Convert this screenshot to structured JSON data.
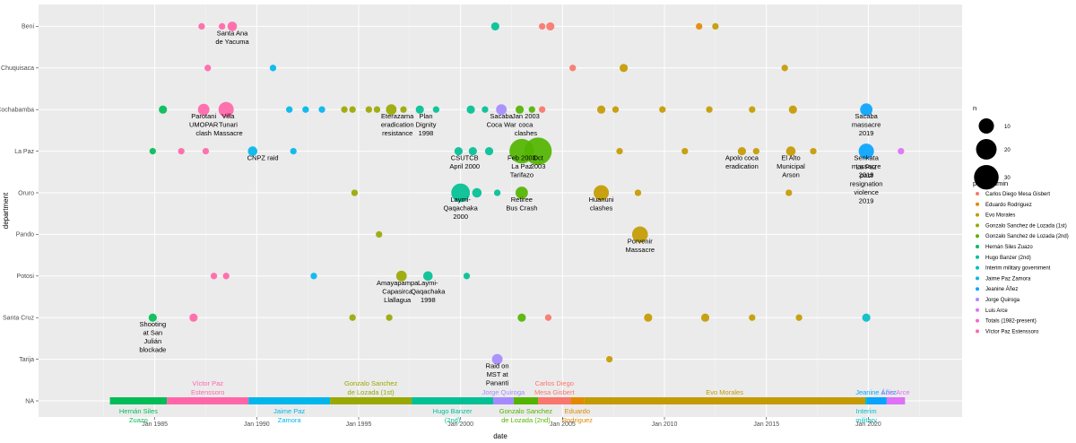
{
  "chart_data": {
    "type": "scatter",
    "title": "",
    "xlabel": "date",
    "ylabel": "department",
    "xlim": [
      1979.3,
      2024.6
    ],
    "x_ticks": [
      1985,
      1990,
      1995,
      2000,
      2005,
      2010,
      2015,
      2020
    ],
    "x_tick_labels": [
      "Jan 1985",
      "Jan 1990",
      "Jan 1995",
      "Jan 2000",
      "Jan 2005",
      "Jan 2010",
      "Jan 2015",
      "Jan 2020"
    ],
    "categories": [
      "NA",
      "Tarija",
      "Santa Cruz",
      "Potosi",
      "Pando",
      "Oruro",
      "La Paz",
      "Cochabamba",
      "Chuquisaca",
      "Beni"
    ],
    "size_legend": {
      "title": "n",
      "values": [
        10,
        20,
        30
      ]
    },
    "color_legend": {
      "title": "pres_admin",
      "entries": [
        {
          "name": "Carlos Diego Mesa Gisbert",
          "color": "#F8766D"
        },
        {
          "name": "Eduardo Rodriguez",
          "color": "#E38900"
        },
        {
          "name": "Evo Morales",
          "color": "#C49A00"
        },
        {
          "name": "Gonzalo Sanchez de Lozada (1st)",
          "color": "#99A800"
        },
        {
          "name": "Gonzalo Sanchez de Lozada (2nd)",
          "color": "#53B400"
        },
        {
          "name": "Hernán Siles Zuazo",
          "color": "#00BC56"
        },
        {
          "name": "Hugo Banzer (2nd)",
          "color": "#00C094"
        },
        {
          "name": "Interim military government",
          "color": "#00BFC4"
        },
        {
          "name": "Jaime Paz Zamora",
          "color": "#00B6EB"
        },
        {
          "name": "Jeanine Áñez",
          "color": "#06A4FF"
        },
        {
          "name": "Jorge Quiroga",
          "color": "#A58AFF"
        },
        {
          "name": "Luis Arce",
          "color": "#DF70F8"
        },
        {
          "name": "Totals (1982-present)",
          "color": "#FB61D7"
        },
        {
          "name": "Víctor Paz Estenssoro",
          "color": "#FF66A8"
        }
      ]
    },
    "presidencies": [
      {
        "name": "Hernán Siles Zuazo",
        "start": 1982.8,
        "end": 1985.6,
        "color": "#00BC56",
        "label_lines": [
          "Hernán Siles",
          "Zuazo"
        ],
        "label_side": "below"
      },
      {
        "name": "Víctor Paz Estenssoro",
        "start": 1985.6,
        "end": 1989.6,
        "color": "#FF66A8",
        "label_lines": [
          "Víctor Paz",
          "Estenssoro"
        ],
        "label_side": "above"
      },
      {
        "name": "Jaime Paz Zamora",
        "start": 1989.6,
        "end": 1993.6,
        "color": "#00B6EB",
        "label_lines": [
          "Jaime Paz",
          "Zamora"
        ],
        "label_side": "below"
      },
      {
        "name": "Gonzalo Sanchez de Lozada (1st)",
        "start": 1993.6,
        "end": 1997.6,
        "color": "#99A800",
        "label_lines": [
          "Gonzalo Sanchez",
          "de Lozada (1st)"
        ],
        "label_side": "above"
      },
      {
        "name": "Hugo Banzer (2nd)",
        "start": 1997.6,
        "end": 2001.6,
        "color": "#00C094",
        "label_lines": [
          "Hugo Banzer",
          "(2nd)"
        ],
        "label_side": "below"
      },
      {
        "name": "Jorge Quiroga",
        "start": 2001.6,
        "end": 2002.6,
        "color": "#A58AFF",
        "label_lines": [
          "Jorge Quiroga"
        ],
        "label_side": "above"
      },
      {
        "name": "Gonzalo Sanchez de Lozada (2nd)",
        "start": 2002.6,
        "end": 2003.8,
        "color": "#53B400",
        "label_lines": [
          "Gonzalo Sanchez",
          "de Lozada (2nd)"
        ],
        "label_side": "below"
      },
      {
        "name": "Carlos Diego Mesa Gisbert",
        "start": 2003.8,
        "end": 2005.4,
        "color": "#F8766D",
        "label_lines": [
          "Carlos Diego",
          "Mesa Gisbert"
        ],
        "label_side": "above"
      },
      {
        "name": "Eduardo Rodriguez",
        "start": 2005.4,
        "end": 2006.05,
        "color": "#E38900",
        "label_lines": [
          "Eduardo",
          "Rodriguez"
        ],
        "label_side": "below"
      },
      {
        "name": "Evo Morales",
        "start": 2006.05,
        "end": 2019.85,
        "color": "#C49A00",
        "label_lines": [
          "Evo Morales"
        ],
        "label_side": "above"
      },
      {
        "name": "Jeanine Áñez",
        "start": 2019.85,
        "end": 2020.9,
        "color": "#06A4FF",
        "label_lines": [
          "Jeanine Áñez"
        ],
        "label_side": "above"
      },
      {
        "name": "Interim military government",
        "start": 2019.85,
        "end": 2019.95,
        "color": "#00BFC4",
        "label_lines": [
          "Interim",
          "military"
        ],
        "label_side": "below"
      },
      {
        "name": "Luis Arce",
        "start": 2020.9,
        "end": 2021.8,
        "color": "#DF70F8",
        "label_lines": [
          "Luis Arce"
        ],
        "label_side": "above"
      }
    ],
    "points": [
      {
        "x": 1987.3,
        "y": "Beni",
        "n": 1,
        "color": "#FF66A8"
      },
      {
        "x": 1988.3,
        "y": "Beni",
        "n": 1,
        "color": "#FF66A8"
      },
      {
        "x": 1988.8,
        "y": "Beni",
        "n": 3,
        "color": "#FF66A8"
      },
      {
        "x": 2001.7,
        "y": "Beni",
        "n": 2,
        "color": "#00C094"
      },
      {
        "x": 2004.0,
        "y": "Beni",
        "n": 1,
        "color": "#F8766D"
      },
      {
        "x": 2004.4,
        "y": "Beni",
        "n": 2,
        "color": "#F8766D"
      },
      {
        "x": 2011.7,
        "y": "Beni",
        "n": 1,
        "color": "#E38900"
      },
      {
        "x": 2012.5,
        "y": "Beni",
        "n": 1,
        "color": "#C49A00"
      },
      {
        "x": 1987.6,
        "y": "Chuquisaca",
        "n": 1,
        "color": "#FF66A8"
      },
      {
        "x": 1990.8,
        "y": "Chuquisaca",
        "n": 1,
        "color": "#00B6EB"
      },
      {
        "x": 2005.5,
        "y": "Chuquisaca",
        "n": 1,
        "color": "#F8766D"
      },
      {
        "x": 2008.0,
        "y": "Chuquisaca",
        "n": 2,
        "color": "#C49A00"
      },
      {
        "x": 2015.9,
        "y": "Chuquisaca",
        "n": 1,
        "color": "#C49A00"
      },
      {
        "x": 1985.4,
        "y": "Cochabamba",
        "n": 2,
        "color": "#00BC56"
      },
      {
        "x": 1987.4,
        "y": "Cochabamba",
        "n": 5,
        "color": "#FF66A8"
      },
      {
        "x": 1988.5,
        "y": "Cochabamba",
        "n": 10,
        "color": "#FF66A8"
      },
      {
        "x": 1991.6,
        "y": "Cochabamba",
        "n": 1,
        "color": "#00B6EB"
      },
      {
        "x": 1992.4,
        "y": "Cochabamba",
        "n": 1,
        "color": "#00B6EB"
      },
      {
        "x": 1993.2,
        "y": "Cochabamba",
        "n": 1,
        "color": "#00B6EB"
      },
      {
        "x": 1994.3,
        "y": "Cochabamba",
        "n": 1,
        "color": "#99A800"
      },
      {
        "x": 1994.7,
        "y": "Cochabamba",
        "n": 1,
        "color": "#99A800"
      },
      {
        "x": 1995.5,
        "y": "Cochabamba",
        "n": 1,
        "color": "#99A800"
      },
      {
        "x": 1995.9,
        "y": "Cochabamba",
        "n": 1,
        "color": "#99A800"
      },
      {
        "x": 1996.6,
        "y": "Cochabamba",
        "n": 4,
        "color": "#99A800"
      },
      {
        "x": 1997.2,
        "y": "Cochabamba",
        "n": 1,
        "color": "#99A800"
      },
      {
        "x": 1998.0,
        "y": "Cochabamba",
        "n": 2,
        "color": "#00C094"
      },
      {
        "x": 1998.8,
        "y": "Cochabamba",
        "n": 1,
        "color": "#00C094"
      },
      {
        "x": 2000.5,
        "y": "Cochabamba",
        "n": 2,
        "color": "#00C094"
      },
      {
        "x": 2001.2,
        "y": "Cochabamba",
        "n": 1,
        "color": "#00C094"
      },
      {
        "x": 2002.0,
        "y": "Cochabamba",
        "n": 4,
        "color": "#A58AFF"
      },
      {
        "x": 2002.9,
        "y": "Cochabamba",
        "n": 2,
        "color": "#53B400"
      },
      {
        "x": 2003.5,
        "y": "Cochabamba",
        "n": 1,
        "color": "#53B400"
      },
      {
        "x": 2004.0,
        "y": "Cochabamba",
        "n": 1,
        "color": "#F8766D"
      },
      {
        "x": 2006.9,
        "y": "Cochabamba",
        "n": 2,
        "color": "#C49A00"
      },
      {
        "x": 2007.6,
        "y": "Cochabamba",
        "n": 1,
        "color": "#C49A00"
      },
      {
        "x": 2009.9,
        "y": "Cochabamba",
        "n": 1,
        "color": "#C49A00"
      },
      {
        "x": 2012.2,
        "y": "Cochabamba",
        "n": 1,
        "color": "#C49A00"
      },
      {
        "x": 2014.3,
        "y": "Cochabamba",
        "n": 1,
        "color": "#C49A00"
      },
      {
        "x": 2016.3,
        "y": "Cochabamba",
        "n": 2,
        "color": "#C49A00"
      },
      {
        "x": 2019.9,
        "y": "Cochabamba",
        "n": 6,
        "color": "#06A4FF"
      },
      {
        "x": 1984.9,
        "y": "La Paz",
        "n": 1,
        "color": "#00BC56"
      },
      {
        "x": 1986.3,
        "y": "La Paz",
        "n": 1,
        "color": "#FF66A8"
      },
      {
        "x": 1987.5,
        "y": "La Paz",
        "n": 1,
        "color": "#FF66A8"
      },
      {
        "x": 1989.8,
        "y": "La Paz",
        "n": 3,
        "color": "#00B6EB"
      },
      {
        "x": 1991.8,
        "y": "La Paz",
        "n": 1,
        "color": "#00B6EB"
      },
      {
        "x": 1999.9,
        "y": "La Paz",
        "n": 2,
        "color": "#00C094"
      },
      {
        "x": 2000.6,
        "y": "La Paz",
        "n": 2,
        "color": "#00C094"
      },
      {
        "x": 2001.4,
        "y": "La Paz",
        "n": 2,
        "color": "#00C094"
      },
      {
        "x": 2003.0,
        "y": "La Paz",
        "n": 30,
        "color": "#53B400"
      },
      {
        "x": 2003.8,
        "y": "La Paz",
        "n": 38,
        "color": "#53B400"
      },
      {
        "x": 2007.8,
        "y": "La Paz",
        "n": 1,
        "color": "#C49A00"
      },
      {
        "x": 2011.0,
        "y": "La Paz",
        "n": 1,
        "color": "#C49A00"
      },
      {
        "x": 2013.8,
        "y": "La Paz",
        "n": 2,
        "color": "#C49A00"
      },
      {
        "x": 2014.5,
        "y": "La Paz",
        "n": 1,
        "color": "#C49A00"
      },
      {
        "x": 2016.2,
        "y": "La Paz",
        "n": 3,
        "color": "#C49A00"
      },
      {
        "x": 2017.3,
        "y": "La Paz",
        "n": 1,
        "color": "#C49A00"
      },
      {
        "x": 2019.9,
        "y": "La Paz",
        "n": 10,
        "color": "#06A4FF"
      },
      {
        "x": 2021.6,
        "y": "La Paz",
        "n": 1,
        "color": "#DF70F8"
      },
      {
        "x": 1994.8,
        "y": "Oruro",
        "n": 1,
        "color": "#99A800"
      },
      {
        "x": 2000.0,
        "y": "Oruro",
        "n": 16,
        "color": "#00C094"
      },
      {
        "x": 2000.8,
        "y": "Oruro",
        "n": 3,
        "color": "#00C094"
      },
      {
        "x": 2001.8,
        "y": "Oruro",
        "n": 1,
        "color": "#00C094"
      },
      {
        "x": 2003.0,
        "y": "Oruro",
        "n": 6,
        "color": "#53B400"
      },
      {
        "x": 2006.9,
        "y": "Oruro",
        "n": 10,
        "color": "#C49A00"
      },
      {
        "x": 2008.7,
        "y": "Oruro",
        "n": 1,
        "color": "#C49A00"
      },
      {
        "x": 2016.1,
        "y": "Oruro",
        "n": 1,
        "color": "#C49A00"
      },
      {
        "x": 1996.0,
        "y": "Pando",
        "n": 1,
        "color": "#99A800"
      },
      {
        "x": 2008.8,
        "y": "Pando",
        "n": 11,
        "color": "#C49A00"
      },
      {
        "x": 1987.9,
        "y": "Potosi",
        "n": 1,
        "color": "#FF66A8"
      },
      {
        "x": 1988.5,
        "y": "Potosi",
        "n": 1,
        "color": "#FF66A8"
      },
      {
        "x": 1992.8,
        "y": "Potosi",
        "n": 1,
        "color": "#00B6EB"
      },
      {
        "x": 1997.1,
        "y": "Potosi",
        "n": 4,
        "color": "#99A800"
      },
      {
        "x": 1998.4,
        "y": "Potosi",
        "n": 3,
        "color": "#00C094"
      },
      {
        "x": 2000.3,
        "y": "Potosi",
        "n": 1,
        "color": "#00C094"
      },
      {
        "x": 1984.9,
        "y": "Santa Cruz",
        "n": 2,
        "color": "#00BC56"
      },
      {
        "x": 1986.9,
        "y": "Santa Cruz",
        "n": 2,
        "color": "#FF66A8"
      },
      {
        "x": 1994.7,
        "y": "Santa Cruz",
        "n": 1,
        "color": "#99A800"
      },
      {
        "x": 1996.5,
        "y": "Santa Cruz",
        "n": 1,
        "color": "#99A800"
      },
      {
        "x": 2003.0,
        "y": "Santa Cruz",
        "n": 2,
        "color": "#53B400"
      },
      {
        "x": 2004.3,
        "y": "Santa Cruz",
        "n": 1,
        "color": "#F8766D"
      },
      {
        "x": 2009.2,
        "y": "Santa Cruz",
        "n": 2,
        "color": "#C49A00"
      },
      {
        "x": 2012.0,
        "y": "Santa Cruz",
        "n": 2,
        "color": "#C49A00"
      },
      {
        "x": 2014.3,
        "y": "Santa Cruz",
        "n": 1,
        "color": "#C49A00"
      },
      {
        "x": 2016.6,
        "y": "Santa Cruz",
        "n": 1,
        "color": "#C49A00"
      },
      {
        "x": 2019.9,
        "y": "Santa Cruz",
        "n": 2,
        "color": "#00BFC4"
      },
      {
        "x": 2001.8,
        "y": "Tarija",
        "n": 4,
        "color": "#A58AFF"
      },
      {
        "x": 2007.3,
        "y": "Tarija",
        "n": 1,
        "color": "#C49A00"
      }
    ],
    "annotations": [
      {
        "x": 1988.8,
        "y": "Beni",
        "lines": [
          "Santa Ana",
          "de Yacuma"
        ],
        "anchor": "middle"
      },
      {
        "x": 1987.4,
        "y": "Cochabamba",
        "lines": [
          "Parotani",
          "UMOPAR",
          "clash"
        ],
        "anchor": "middle"
      },
      {
        "x": 1988.6,
        "y": "Cochabamba",
        "lines": [
          "Villa",
          "Tunari",
          "Massacre"
        ],
        "anchor": "middle"
      },
      {
        "x": 1996.9,
        "y": "Cochabamba",
        "lines": [
          "Eterazama",
          "eradication",
          "resistance"
        ],
        "anchor": "middle"
      },
      {
        "x": 1998.3,
        "y": "Cochabamba",
        "lines": [
          "Plan",
          "Dignity",
          "1998"
        ],
        "anchor": "middle"
      },
      {
        "x": 2002.0,
        "y": "Cochabamba",
        "lines": [
          "Sacaba",
          "Coca War"
        ],
        "anchor": "middle"
      },
      {
        "x": 2003.2,
        "y": "Cochabamba",
        "lines": [
          "Jan 2003",
          "coca",
          "clashes"
        ],
        "anchor": "middle"
      },
      {
        "x": 2019.9,
        "y": "Cochabamba",
        "lines": [
          "Sacaba",
          "massacre",
          "2019"
        ],
        "anchor": "middle"
      },
      {
        "x": 1990.3,
        "y": "La Paz",
        "lines": [
          "CNPZ raid"
        ],
        "anchor": "middle"
      },
      {
        "x": 2000.2,
        "y": "La Paz",
        "lines": [
          "CSUTCB",
          "April 2000"
        ],
        "anchor": "middle"
      },
      {
        "x": 2003.0,
        "y": "La Paz",
        "lines": [
          "Feb 2003",
          "La Paz",
          "Tarifazo"
        ],
        "anchor": "middle"
      },
      {
        "x": 2003.8,
        "y": "La Paz",
        "lines": [
          "Oct",
          "2003"
        ],
        "anchor": "middle"
      },
      {
        "x": 2013.8,
        "y": "La Paz",
        "lines": [
          "Apolo coca",
          "eradication"
        ],
        "anchor": "middle"
      },
      {
        "x": 2016.2,
        "y": "La Paz",
        "lines": [
          "El Alto",
          "Municipal",
          "Arson"
        ],
        "anchor": "middle"
      },
      {
        "x": 2019.9,
        "y": "La Paz",
        "lines": [
          "Senkata",
          "massacre",
          "2019"
        ],
        "anchor": "middle"
      },
      {
        "x": 2019.9,
        "y": "La Paz",
        "lines": [
          "La Paz",
          "post",
          "resignation",
          "violence",
          "2019"
        ],
        "anchor": "middle",
        "offset": 1
      },
      {
        "x": 2000.0,
        "y": "Oruro",
        "lines": [
          "Laymi-",
          "Qaqachaka",
          "2000"
        ],
        "anchor": "middle"
      },
      {
        "x": 2003.0,
        "y": "Oruro",
        "lines": [
          "Retiree",
          "Bus Crash"
        ],
        "anchor": "middle"
      },
      {
        "x": 2006.9,
        "y": "Oruro",
        "lines": [
          "Huanuni",
          "clashes"
        ],
        "anchor": "middle"
      },
      {
        "x": 2008.8,
        "y": "Pando",
        "lines": [
          "Porvenir",
          "Massacre"
        ],
        "anchor": "middle"
      },
      {
        "x": 1996.9,
        "y": "Potosi",
        "lines": [
          "Amayapampa",
          "Capasirca",
          "Llallagua"
        ],
        "anchor": "middle"
      },
      {
        "x": 1998.4,
        "y": "Potosi",
        "lines": [
          "Laymi-",
          "Qaqachaka",
          "1998"
        ],
        "anchor": "middle"
      },
      {
        "x": 1984.9,
        "y": "Santa Cruz",
        "lines": [
          "Shooting",
          "at San",
          "Julián",
          "blockade"
        ],
        "anchor": "middle"
      },
      {
        "x": 2001.8,
        "y": "Tarija",
        "lines": [
          "Raid on",
          "MST at",
          "Pananti"
        ],
        "anchor": "middle"
      }
    ]
  }
}
